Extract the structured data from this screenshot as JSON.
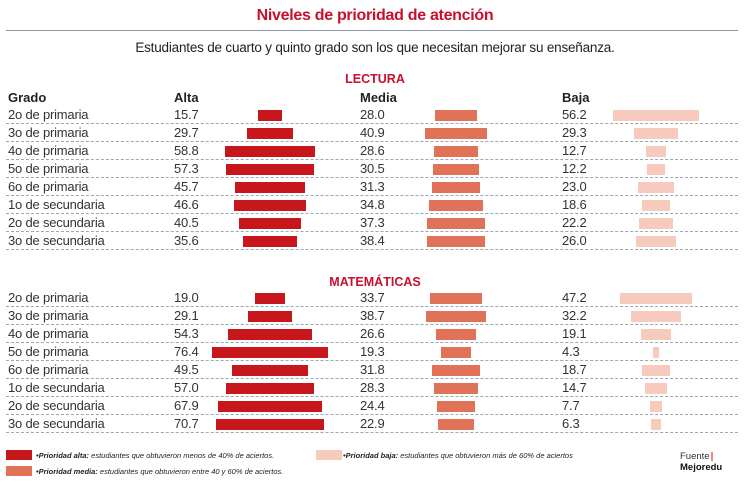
{
  "title": "Niveles de prioridad de atención",
  "subtitle": "Estudiantes de cuarto y quinto grado son los que necesitan mejorar su enseñanza.",
  "colors": {
    "alta": "#c8161d",
    "media": "#e07258",
    "baja": "#f6cbbd",
    "accent": "#c8102e"
  },
  "headers": {
    "grado": "Grado",
    "alta": "Alta",
    "media": "Media",
    "baja": "Baja"
  },
  "chart_data": [
    {
      "type": "bar",
      "title": "LECTURA",
      "categories": [
        "2o de primaria",
        "3o de primaria",
        "4o de primaria",
        "5o de primaria",
        "6o de primaria",
        "1o de secundaria",
        "2o de secundaria",
        "3o de secundaria"
      ],
      "series": [
        {
          "name": "Alta",
          "values": [
            15.7,
            29.7,
            58.8,
            57.3,
            45.7,
            46.6,
            40.5,
            35.6
          ]
        },
        {
          "name": "Media",
          "values": [
            28.0,
            40.9,
            28.6,
            30.5,
            31.3,
            34.8,
            37.3,
            38.4
          ]
        },
        {
          "name": "Baja",
          "values": [
            56.2,
            29.3,
            12.7,
            12.2,
            23.0,
            18.6,
            22.2,
            26.0
          ]
        }
      ]
    },
    {
      "type": "bar",
      "title": "MATEMÁTICAS",
      "categories": [
        "2o de primaria",
        "3o de primaria",
        "4o de primaria",
        "5o de primaria",
        "6o de primaria",
        "1o de secundaria",
        "2o de secundaria",
        "3o de secundaria"
      ],
      "series": [
        {
          "name": "Alta",
          "values": [
            19.0,
            29.1,
            54.3,
            76.4,
            49.5,
            57.0,
            67.9,
            70.7
          ]
        },
        {
          "name": "Media",
          "values": [
            33.7,
            38.7,
            26.6,
            19.3,
            31.8,
            28.3,
            24.4,
            22.9
          ]
        },
        {
          "name": "Baja",
          "values": [
            47.2,
            32.2,
            19.1,
            4.3,
            18.7,
            14.7,
            7.7,
            6.3
          ]
        }
      ]
    }
  ],
  "legend": [
    {
      "key": "alta",
      "label": "•Prioridad alta:",
      "text": " estudiantes que obtuvieron menos de 40% de aciertos."
    },
    {
      "key": "media",
      "label": "•Prioridad media:",
      "text": " estudiantes que obtuvieron entre 40 y 60% de aciertos."
    },
    {
      "key": "baja",
      "label": "•Prioridad baja:",
      "text": " estudiantes que obtuvieron más de 60% de aciertos"
    }
  ],
  "source": {
    "label": "Fuente",
    "name": "Mejoredu"
  }
}
